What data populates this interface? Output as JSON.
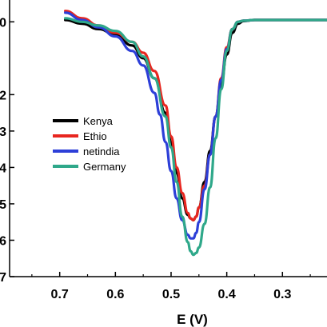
{
  "chart_data": {
    "type": "line",
    "title": "",
    "xlabel": "E (V)",
    "ylabel": "",
    "x_reversed": true,
    "xlim": [
      0.22,
      0.79
    ],
    "ylim": [
      -7.0,
      0.6
    ],
    "x_ticks": [
      "0.7",
      "0.6",
      "0.5",
      "0.4",
      "0.3"
    ],
    "x_tick_values": [
      0.7,
      0.6,
      0.5,
      0.4,
      0.3
    ],
    "y_tick_values": [
      0,
      -2,
      -3,
      -4,
      -5,
      -6,
      -7
    ],
    "y_tick_labels": [
      "0",
      "2",
      "3",
      "4",
      "5",
      "6",
      "7"
    ],
    "grid": false,
    "legend_position": "middle-left",
    "series": [
      {
        "name": "Kenya",
        "color": "#000000",
        "x": [
          0.69,
          0.66,
          0.63,
          0.6,
          0.57,
          0.55,
          0.53,
          0.51,
          0.5,
          0.49,
          0.48,
          0.47,
          0.465,
          0.46,
          0.455,
          0.45,
          0.44,
          0.43,
          0.42,
          0.41,
          0.4,
          0.39,
          0.38,
          0.37,
          0.35,
          0.3,
          0.22
        ],
        "y": [
          0.05,
          -0.05,
          -0.2,
          -0.35,
          -0.65,
          -1.0,
          -1.55,
          -2.5,
          -3.3,
          -4.15,
          -4.85,
          -5.3,
          -5.4,
          -5.45,
          -5.35,
          -5.1,
          -4.4,
          -3.55,
          -2.6,
          -1.7,
          -0.9,
          -0.3,
          -0.05,
          0.02,
          0.05,
          0.05,
          0.05
        ]
      },
      {
        "name": "Ethio",
        "color": "#e8261f",
        "x": [
          0.69,
          0.66,
          0.63,
          0.6,
          0.57,
          0.55,
          0.53,
          0.51,
          0.5,
          0.49,
          0.48,
          0.47,
          0.465,
          0.46,
          0.455,
          0.45,
          0.44,
          0.43,
          0.42,
          0.41,
          0.4,
          0.39,
          0.38,
          0.37,
          0.35,
          0.3,
          0.22
        ],
        "y": [
          0.3,
          0.1,
          -0.1,
          -0.3,
          -0.55,
          -0.85,
          -1.35,
          -2.3,
          -3.15,
          -4.0,
          -4.7,
          -5.25,
          -5.4,
          -5.45,
          -5.35,
          -5.1,
          -4.5,
          -3.65,
          -2.6,
          -1.55,
          -0.7,
          -0.2,
          0.0,
          0.03,
          0.05,
          0.05,
          0.05
        ]
      },
      {
        "name": "netindia",
        "color": "#2d3fd8",
        "x": [
          0.69,
          0.66,
          0.63,
          0.6,
          0.57,
          0.55,
          0.53,
          0.52,
          0.51,
          0.5,
          0.49,
          0.48,
          0.47,
          0.465,
          0.46,
          0.455,
          0.45,
          0.44,
          0.43,
          0.42,
          0.41,
          0.4,
          0.39,
          0.38,
          0.37,
          0.35,
          0.3,
          0.22
        ],
        "y": [
          0.25,
          0.05,
          -0.15,
          -0.4,
          -0.8,
          -1.2,
          -1.95,
          -2.55,
          -3.3,
          -4.1,
          -4.85,
          -5.45,
          -5.85,
          -5.95,
          -5.95,
          -5.8,
          -5.5,
          -4.6,
          -3.65,
          -2.6,
          -1.6,
          -0.75,
          -0.2,
          0.0,
          0.03,
          0.05,
          0.05,
          0.05
        ]
      },
      {
        "name": "Germany",
        "color": "#2fa88a",
        "x": [
          0.69,
          0.66,
          0.63,
          0.6,
          0.57,
          0.55,
          0.53,
          0.51,
          0.5,
          0.49,
          0.48,
          0.47,
          0.465,
          0.46,
          0.455,
          0.45,
          0.44,
          0.43,
          0.42,
          0.41,
          0.4,
          0.39,
          0.38,
          0.37,
          0.35,
          0.3,
          0.22
        ],
        "y": [
          0.1,
          0.0,
          -0.1,
          -0.25,
          -0.55,
          -0.95,
          -1.55,
          -2.6,
          -3.45,
          -4.4,
          -5.35,
          -6.05,
          -6.3,
          -6.4,
          -6.35,
          -6.2,
          -5.55,
          -4.55,
          -3.2,
          -1.85,
          -0.8,
          -0.2,
          0.0,
          0.03,
          0.05,
          0.05,
          0.05
        ]
      }
    ]
  }
}
